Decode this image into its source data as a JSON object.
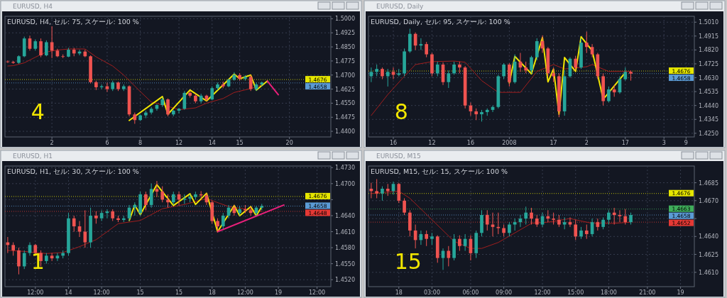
{
  "chart_data": [
    {
      "type": "candlestick",
      "title": "EURUSD, H4",
      "subtitle": "EURUSD, H4, セル: 75, スケール: 100 %",
      "categories": [
        null,
        null,
        null,
        null,
        null,
        null,
        null,
        null,
        "2",
        null,
        null,
        null,
        null,
        null,
        null,
        null,
        null,
        null,
        "6",
        null,
        null,
        null,
        null,
        null,
        "8",
        null,
        null,
        null,
        null,
        null,
        null,
        "12",
        null,
        null,
        null,
        null,
        null,
        "14",
        null,
        null,
        null,
        null,
        "15",
        null,
        null,
        null,
        null,
        null,
        null,
        null,
        null,
        "20",
        null,
        null,
        null,
        null,
        null,
        null,
        null
      ],
      "ohlc": [
        [
          1.4772,
          1.4778,
          1.4765,
          1.477
        ],
        [
          1.477,
          1.4775,
          1.476,
          1.4765
        ],
        [
          1.4765,
          1.4805,
          1.476,
          1.48
        ],
        [
          1.48,
          1.4905,
          1.4795,
          1.4895
        ],
        [
          1.4895,
          1.491,
          1.483,
          1.484
        ],
        [
          1.484,
          1.489,
          1.483,
          1.488
        ],
        [
          1.488,
          1.4895,
          1.4795,
          1.4805
        ],
        [
          1.4805,
          1.4885,
          1.48,
          1.4875
        ],
        [
          1.4875,
          1.496,
          1.479,
          1.483
        ],
        [
          1.483,
          1.484,
          1.4795,
          1.48
        ],
        [
          1.48,
          1.481,
          1.479,
          1.4798
        ],
        [
          1.4798,
          1.4845,
          1.4795,
          1.4835
        ],
        [
          1.4835,
          1.4845,
          1.48,
          1.4815
        ],
        [
          1.4815,
          1.4835,
          1.4805,
          1.4825
        ],
        [
          1.4825,
          1.4835,
          1.4795,
          1.48
        ],
        [
          1.48,
          1.4805,
          1.4655,
          1.4662
        ],
        [
          1.4662,
          1.467,
          1.462,
          1.4635
        ],
        [
          1.4635,
          1.465,
          1.4625,
          1.464
        ],
        [
          1.464,
          1.466,
          1.461,
          1.4625
        ],
        [
          1.4625,
          1.467,
          1.4615,
          1.466
        ],
        [
          1.466,
          1.4665,
          1.4615,
          1.4625
        ],
        [
          1.4625,
          1.465,
          1.4615,
          1.464
        ],
        [
          1.464,
          1.4645,
          1.448,
          1.449
        ],
        [
          1.449,
          1.45,
          1.444,
          1.446
        ],
        [
          1.446,
          1.449,
          1.4455,
          1.4485
        ],
        [
          1.4485,
          1.451,
          1.447,
          1.45
        ],
        [
          1.45,
          1.453,
          1.449,
          1.452
        ],
        [
          1.452,
          1.4545,
          1.451,
          1.454
        ],
        [
          1.454,
          1.458,
          1.453,
          1.457
        ],
        [
          1.457,
          1.4575,
          1.448,
          1.449
        ],
        [
          1.449,
          1.4515,
          1.448,
          1.451
        ],
        [
          1.451,
          1.4525,
          1.4495,
          1.452
        ],
        [
          1.452,
          1.4615,
          1.4515,
          1.4605
        ],
        [
          1.4605,
          1.4615,
          1.458,
          1.459
        ],
        [
          1.459,
          1.46,
          1.455,
          1.456
        ],
        [
          1.456,
          1.46,
          1.455,
          1.459
        ],
        [
          1.459,
          1.4595,
          1.456,
          1.457
        ],
        [
          1.457,
          1.464,
          1.4565,
          1.463
        ],
        [
          1.463,
          1.466,
          1.462,
          1.465
        ],
        [
          1.465,
          1.4665,
          1.463,
          1.464
        ],
        [
          1.464,
          1.468,
          1.4635,
          1.4675
        ],
        [
          1.4675,
          1.4715,
          1.467,
          1.47
        ],
        [
          1.47,
          1.471,
          1.467,
          1.468
        ],
        [
          1.468,
          1.47,
          1.467,
          1.469
        ],
        [
          1.469,
          1.47,
          1.4615,
          1.4625
        ],
        [
          1.4625,
          1.466,
          1.4615,
          1.465
        ],
        [
          1.465,
          1.4665,
          1.464,
          1.466
        ],
        null,
        null,
        null,
        null,
        null,
        null,
        null,
        null,
        null,
        null,
        null,
        null
      ],
      "series": [
        {
          "type": "line",
          "color": "#a01e1e",
          "values": [
            1.4748,
            1.475,
            null,
            1.4765,
            null,
            1.4795,
            null,
            1.4823,
            null,
            1.4833,
            null,
            1.4839,
            null,
            null,
            1.4839,
            null,
            1.4797,
            null,
            null,
            1.4748,
            null,
            1.47,
            null,
            null,
            1.4612,
            null,
            1.4556,
            null,
            null,
            1.4533,
            null,
            1.4515,
            null,
            null,
            1.4525,
            null,
            1.455,
            null,
            null,
            1.4575,
            null,
            1.4607,
            null,
            null,
            1.4628,
            null,
            1.4647,
            null,
            null,
            null,
            null,
            null,
            null,
            null,
            null,
            null,
            null,
            null,
            null
          ]
        },
        {
          "type": "line",
          "color": "#f2e600",
          "values": [
            null,
            null,
            null,
            null,
            null,
            null,
            null,
            null,
            null,
            null,
            null,
            null,
            null,
            null,
            null,
            null,
            null,
            null,
            null,
            null,
            null,
            null,
            1.4458,
            null,
            null,
            null,
            null,
            null,
            1.4585,
            1.4491,
            null,
            null,
            null,
            1.462,
            null,
            null,
            1.4562,
            null,
            null,
            null,
            null,
            1.4705,
            1.468,
            null,
            1.47,
            1.462,
            null,
            1.4668,
            null,
            null,
            null,
            null,
            null,
            null,
            null,
            null,
            null,
            null,
            null
          ]
        },
        {
          "type": "line",
          "color": "#e8207a",
          "values": [
            null,
            null,
            null,
            null,
            null,
            null,
            null,
            null,
            null,
            null,
            null,
            null,
            null,
            null,
            null,
            null,
            null,
            null,
            null,
            null,
            null,
            null,
            null,
            null,
            null,
            null,
            null,
            null,
            null,
            null,
            null,
            null,
            null,
            null,
            null,
            null,
            null,
            null,
            null,
            null,
            null,
            null,
            null,
            null,
            null,
            null,
            null,
            1.4668,
            null,
            1.4595,
            null,
            null,
            null,
            null,
            null,
            null,
            null,
            null,
            null
          ]
        }
      ],
      "ylim": [
        1.437,
        1.5013
      ],
      "yticks": [
        {
          "value": 1.5,
          "label": "1.5000"
        },
        {
          "value": 1.4925,
          "label": "1.4925"
        },
        {
          "value": 1.485,
          "label": "1.4850"
        },
        {
          "value": 1.4775,
          "label": "1.4775"
        },
        {
          "value": 1.47,
          "label": "1.4700"
        },
        {
          "value": 1.4625,
          "label": "1.4625"
        },
        {
          "value": 1.455,
          "label": "1.4550"
        },
        {
          "value": 1.4475,
          "label": "1.4475"
        },
        {
          "value": 1.44,
          "label": "1.4400"
        }
      ],
      "ref_lines": [
        {
          "axis": "y",
          "value": 1.4676,
          "label": "1.4676",
          "color": "#e6e600"
        },
        {
          "axis": "y",
          "value": 1.4658,
          "label": "1.4658",
          "color": "#5b9bd5"
        }
      ],
      "grid": true,
      "annotations": [
        "4"
      ]
    },
    {
      "type": "candlestick",
      "title": "EURUSD, Daily",
      "subtitle": "EURUSD, Daily, セル: 95, スケール: 100 %",
      "categories": [
        null,
        null,
        null,
        null,
        "16",
        null,
        null,
        null,
        null,
        null,
        null,
        "12",
        null,
        null,
        null,
        null,
        null,
        null,
        "16",
        null,
        null,
        null,
        null,
        null,
        null,
        "2008",
        null,
        null,
        null,
        null,
        null,
        null,
        null,
        "17",
        null,
        null,
        null,
        null,
        null,
        "2",
        null,
        null,
        null,
        null,
        null,
        null,
        "17",
        null,
        null,
        null,
        null,
        null,
        null,
        "3",
        null,
        null,
        null,
        "9",
        null
      ],
      "ohlc": [
        [
          1.464,
          1.47,
          1.46,
          1.467
        ],
        [
          1.467,
          1.472,
          1.464,
          1.469
        ],
        [
          1.469,
          1.47,
          1.462,
          1.464
        ],
        [
          1.464,
          1.469,
          1.457,
          1.467
        ],
        [
          1.467,
          1.47,
          1.462,
          1.465
        ],
        [
          1.465,
          1.469,
          1.464,
          1.466
        ],
        [
          1.466,
          1.483,
          1.464,
          1.481
        ],
        [
          1.481,
          1.4965,
          1.48,
          1.493
        ],
        [
          1.493,
          1.494,
          1.482,
          1.485
        ],
        [
          1.485,
          1.49,
          1.482,
          1.486
        ],
        [
          1.486,
          1.4875,
          1.477,
          1.479
        ],
        [
          1.479,
          1.48,
          1.464,
          1.466
        ],
        [
          1.466,
          1.474,
          1.464,
          1.472
        ],
        [
          1.472,
          1.4735,
          1.458,
          1.46
        ],
        [
          1.46,
          1.468,
          1.456,
          1.466
        ],
        [
          1.466,
          1.474,
          1.465,
          1.472
        ],
        [
          1.472,
          1.474,
          1.466,
          1.47
        ],
        [
          1.47,
          1.471,
          1.442,
          1.444
        ],
        [
          1.444,
          1.446,
          1.437,
          1.44
        ],
        [
          1.44,
          1.442,
          1.434,
          1.438
        ],
        [
          1.438,
          1.441,
          1.433,
          1.4395
        ],
        [
          1.4395,
          1.442,
          1.437,
          1.441
        ],
        [
          1.441,
          1.444,
          1.4395,
          1.443
        ],
        [
          1.443,
          1.465,
          1.442,
          1.464
        ],
        [
          1.464,
          1.473,
          1.462,
          1.472
        ],
        [
          1.472,
          1.473,
          1.457,
          1.46
        ],
        [
          1.46,
          1.479,
          1.459,
          1.474
        ],
        [
          1.474,
          1.48,
          1.467,
          1.47
        ],
        [
          1.47,
          1.474,
          1.466,
          1.468
        ],
        [
          1.468,
          1.478,
          1.466,
          1.477
        ],
        [
          1.477,
          1.49,
          1.475,
          1.488
        ],
        [
          1.488,
          1.492,
          1.48,
          1.483
        ],
        [
          1.483,
          1.484,
          1.464,
          1.466
        ],
        [
          1.466,
          1.47,
          1.46,
          1.464
        ],
        [
          1.464,
          1.466,
          1.436,
          1.44
        ],
        [
          1.44,
          1.468,
          1.437,
          1.464
        ],
        [
          1.464,
          1.477,
          1.463,
          1.476
        ],
        [
          1.476,
          1.478,
          1.468,
          1.47
        ],
        [
          1.47,
          1.49,
          1.469,
          1.487
        ],
        [
          1.487,
          1.4945,
          1.48,
          1.484
        ],
        [
          1.484,
          1.486,
          1.477,
          1.479
        ],
        [
          1.479,
          1.48,
          1.462,
          1.464
        ],
        [
          1.464,
          1.466,
          1.444,
          1.447
        ],
        [
          1.447,
          1.457,
          1.446,
          1.455
        ],
        [
          1.455,
          1.458,
          1.45,
          1.453
        ],
        [
          1.453,
          1.464,
          1.452,
          1.462
        ],
        [
          1.462,
          1.47,
          1.461,
          1.467
        ],
        [
          1.467,
          1.468,
          1.461,
          1.4658
        ],
        null,
        null,
        null,
        null,
        null,
        null,
        null,
        null,
        null,
        null,
        null
      ],
      "series": [
        {
          "type": "line",
          "color": "#a01e1e",
          "values": [
            1.4372,
            null,
            null,
            1.4515,
            null,
            null,
            1.464,
            null,
            1.472,
            null,
            null,
            1.474,
            null,
            null,
            null,
            1.4744,
            null,
            1.4736,
            null,
            null,
            1.461,
            null,
            null,
            1.453,
            null,
            null,
            null,
            1.453,
            null,
            null,
            1.4673,
            null,
            null,
            1.472,
            null,
            1.469,
            null,
            null,
            null,
            1.4705,
            1.472,
            null,
            null,
            1.4673,
            null,
            null,
            null,
            1.4673,
            null,
            null,
            null,
            null,
            null,
            null,
            null,
            null,
            null,
            null,
            null
          ]
        },
        {
          "type": "line",
          "color": "#f2e600",
          "values": [
            null,
            null,
            null,
            null,
            null,
            null,
            null,
            null,
            null,
            null,
            null,
            null,
            null,
            null,
            null,
            null,
            null,
            null,
            null,
            null,
            null,
            null,
            null,
            null,
            null,
            1.4594,
            1.4776,
            null,
            null,
            1.4657,
            null,
            1.4905,
            1.4602,
            1.4689,
            1.438,
            1.4768,
            null,
            1.4673,
            1.491,
            null,
            1.4815,
            null,
            1.4483,
            null,
            null,
            null,
            1.4665,
            null,
            null,
            null,
            null,
            null,
            null,
            null,
            null,
            null,
            null,
            null,
            null
          ]
        }
      ],
      "ylim": [
        1.4225,
        1.505
      ],
      "yticks": [
        {
          "value": 1.501,
          "label": "1.5010"
        },
        {
          "value": 1.4915,
          "label": "1.4915"
        },
        {
          "value": 1.482,
          "label": "1.4820"
        },
        {
          "value": 1.4725,
          "label": "1.4725"
        },
        {
          "value": 1.463,
          "label": "1.4630"
        },
        {
          "value": 1.4535,
          "label": "1.4535"
        },
        {
          "value": 1.444,
          "label": "1.4440"
        },
        {
          "value": 1.4345,
          "label": "1.4345"
        },
        {
          "value": 1.425,
          "label": "1.4250"
        }
      ],
      "ref_lines": [
        {
          "axis": "y",
          "value": 1.4676,
          "label": "1.4676",
          "color": "#e6e600"
        },
        {
          "axis": "y",
          "value": 1.4658,
          "label": "1.4658",
          "color": "#5b9bd5"
        }
      ],
      "grid": true,
      "annotations": [
        "8"
      ]
    },
    {
      "type": "candlestick",
      "title": "EURUSD, H1",
      "subtitle": "EURUSD, H1, セル: 30, スケール: 100 %",
      "categories": [
        null,
        null,
        null,
        null,
        null,
        "12:00",
        null,
        null,
        null,
        null,
        null,
        "14",
        null,
        null,
        null,
        null,
        null,
        "12:00",
        null,
        null,
        null,
        null,
        null,
        null,
        "15",
        null,
        null,
        null,
        null,
        null,
        null,
        "15",
        null,
        null,
        null,
        null,
        null,
        "18",
        null,
        null,
        null,
        null,
        null,
        "12:00",
        null,
        null,
        null,
        null,
        null,
        "19",
        null,
        null,
        null,
        null,
        null,
        null,
        "12:00",
        null,
        null
      ],
      "ohlc": [
        [
          1.459,
          1.46,
          1.457,
          1.4585
        ],
        [
          1.4585,
          1.459,
          1.4565,
          1.4575
        ],
        [
          1.4575,
          1.458,
          1.453,
          1.4545
        ],
        [
          1.4545,
          1.4575,
          1.454,
          1.457
        ],
        [
          1.457,
          1.459,
          1.4565,
          1.4585
        ],
        [
          1.4585,
          1.4587,
          1.4565,
          1.457
        ],
        [
          1.457,
          1.4575,
          1.4545,
          1.4555
        ],
        [
          1.4555,
          1.457,
          1.455,
          1.4565
        ],
        [
          1.4565,
          1.457,
          1.4555,
          1.456
        ],
        [
          1.456,
          1.457,
          1.4555,
          1.4565
        ],
        [
          1.4565,
          1.4575,
          1.456,
          1.457
        ],
        [
          1.457,
          1.4645,
          1.4565,
          1.4635
        ],
        [
          1.4635,
          1.464,
          1.461,
          1.462
        ],
        [
          1.462,
          1.463,
          1.46,
          1.461
        ],
        [
          1.461,
          1.465,
          1.458,
          1.459
        ],
        [
          1.459,
          1.4655,
          1.458,
          1.464
        ],
        [
          1.464,
          1.4648,
          1.4625,
          1.4635
        ],
        [
          1.4635,
          1.465,
          1.463,
          1.4645
        ],
        [
          1.4645,
          1.4652,
          1.4635,
          1.4648
        ],
        [
          1.4648,
          1.4652,
          1.463,
          1.4635
        ],
        [
          1.4635,
          1.464,
          1.4628,
          1.4632
        ],
        [
          1.4632,
          1.464,
          1.4628,
          1.4635
        ],
        [
          1.4635,
          1.466,
          1.463,
          1.4655
        ],
        [
          1.4655,
          1.4665,
          1.464,
          1.466
        ],
        [
          1.4645,
          1.4685,
          1.464,
          1.468
        ],
        [
          1.468,
          1.4685,
          1.465,
          1.466
        ],
        [
          1.466,
          1.47,
          1.4655,
          1.469
        ],
        [
          1.469,
          1.4705,
          1.4675,
          1.4685
        ],
        [
          1.4685,
          1.4695,
          1.4665,
          1.467
        ],
        [
          1.467,
          1.468,
          1.4655,
          1.4665
        ],
        [
          1.4665,
          1.4685,
          1.466,
          1.468
        ],
        [
          1.468,
          1.4685,
          1.466,
          1.467
        ],
        [
          1.467,
          1.468,
          1.4662,
          1.4672
        ],
        [
          1.4672,
          1.468,
          1.4665,
          1.4675
        ],
        [
          1.4675,
          1.4685,
          1.467,
          1.468
        ],
        [
          1.468,
          1.4686,
          1.4672,
          1.4678
        ],
        [
          1.4678,
          1.4682,
          1.466,
          1.4665
        ],
        [
          1.4665,
          1.4668,
          1.4625,
          1.463
        ],
        [
          1.463,
          1.4635,
          1.4612,
          1.462
        ],
        [
          1.462,
          1.4645,
          1.4615,
          1.464
        ],
        [
          1.464,
          1.466,
          1.4635,
          1.4655
        ],
        [
          1.4655,
          1.466,
          1.464,
          1.4645
        ],
        [
          1.4645,
          1.4658,
          1.464,
          1.4652
        ],
        [
          1.4652,
          1.466,
          1.4645,
          1.465
        ],
        [
          1.465,
          1.4657,
          1.464,
          1.4645
        ],
        [
          1.4645,
          1.4658,
          1.464,
          1.4655
        ],
        [
          1.4655,
          1.4662,
          1.465,
          1.4658
        ],
        null,
        null,
        null,
        null,
        null,
        null,
        null,
        null,
        null,
        null,
        null,
        null
      ],
      "series": [
        {
          "type": "line",
          "color": "#a01e1e",
          "values": [
            1.4575,
            null,
            null,
            1.4573,
            null,
            null,
            null,
            1.4569,
            null,
            null,
            1.4571,
            null,
            null,
            1.4582,
            null,
            null,
            1.4595,
            null,
            null,
            null,
            1.4625,
            null,
            null,
            null,
            1.4631,
            null,
            null,
            null,
            1.4653,
            null,
            null,
            null,
            1.4661,
            null,
            null,
            null,
            1.4672,
            null,
            null,
            null,
            1.4657,
            null,
            null,
            null,
            1.4651,
            null,
            1.4648,
            null,
            null,
            null,
            null,
            null,
            null,
            null,
            null,
            null,
            null,
            null,
            null
          ]
        },
        {
          "type": "line",
          "color": "#f2e600",
          "values": [
            null,
            null,
            null,
            null,
            null,
            null,
            null,
            null,
            null,
            null,
            null,
            null,
            null,
            null,
            null,
            null,
            null,
            null,
            null,
            null,
            null,
            null,
            1.4631,
            1.466,
            1.4642,
            null,
            null,
            1.4698,
            null,
            null,
            1.4659,
            null,
            null,
            1.4681,
            1.4661,
            null,
            1.4682,
            null,
            1.461,
            null,
            null,
            1.4659,
            1.464,
            null,
            1.4657,
            1.464,
            1.4657,
            null,
            null,
            null,
            null,
            null,
            null,
            null,
            null,
            null,
            null,
            null,
            null
          ]
        },
        {
          "type": "line",
          "color": "#e8207a",
          "values": [
            null,
            null,
            null,
            null,
            null,
            null,
            null,
            null,
            null,
            null,
            null,
            null,
            null,
            null,
            null,
            null,
            null,
            null,
            null,
            null,
            null,
            null,
            null,
            null,
            null,
            null,
            null,
            null,
            null,
            null,
            null,
            null,
            null,
            null,
            null,
            null,
            null,
            null,
            1.461,
            null,
            null,
            null,
            null,
            null,
            null,
            null,
            null,
            null,
            null,
            null,
            1.466,
            null,
            null,
            null,
            null,
            null,
            null,
            null,
            null
          ]
        }
      ],
      "ylim": [
        1.4507,
        1.4733
      ],
      "yticks": [
        {
          "value": 1.473,
          "label": "1.4730"
        },
        {
          "value": 1.47,
          "label": "1.4700"
        },
        {
          "value": 1.467,
          "label": null
        },
        {
          "value": 1.464,
          "label": "1.4640"
        },
        {
          "value": 1.461,
          "label": "1.4610"
        },
        {
          "value": 1.458,
          "label": "1.4580"
        },
        {
          "value": 1.455,
          "label": "1.4550"
        },
        {
          "value": 1.452,
          "label": "1.4520"
        }
      ],
      "ref_lines": [
        {
          "axis": "y",
          "value": 1.4676,
          "label": "1.4676",
          "color": "#e6e600"
        },
        {
          "axis": "y",
          "value": 1.4658,
          "label": "1.4658",
          "color": "#5b9bd5"
        },
        {
          "axis": "y",
          "value": 1.4648,
          "label": "1.4648",
          "color": "#e53935"
        }
      ],
      "grid": true,
      "annotations": [
        "1"
      ]
    },
    {
      "type": "candlestick",
      "title": "EURUSD, M15",
      "subtitle": "EURUSD, M15, セル: 15, スケール: 100 %",
      "categories": [
        null,
        null,
        null,
        null,
        null,
        "18",
        null,
        null,
        null,
        null,
        null,
        "03:00",
        null,
        null,
        null,
        null,
        null,
        null,
        "06:00",
        null,
        null,
        null,
        null,
        null,
        "09:00",
        null,
        null,
        null,
        null,
        null,
        null,
        "12:00",
        null,
        null,
        null,
        null,
        null,
        "15:00",
        null,
        null,
        null,
        null,
        null,
        "18:00",
        null,
        null,
        null,
        null,
        null,
        null,
        "21:00",
        null,
        null,
        null,
        null,
        null,
        "19",
        null,
        null
      ],
      "ohlc": [
        [
          1.468,
          1.4685,
          1.4672,
          1.4678
        ],
        [
          1.4678,
          1.4688,
          1.4672,
          1.4676
        ],
        [
          1.4676,
          1.4682,
          1.467,
          1.468
        ],
        [
          1.468,
          1.4684,
          1.4674,
          1.4678
        ],
        [
          1.4678,
          1.4686,
          1.4675,
          1.4684
        ],
        [
          1.4684,
          1.4685,
          1.4668,
          1.467
        ],
        [
          1.467,
          1.4672,
          1.4658,
          1.466
        ],
        [
          1.466,
          1.4662,
          1.464,
          1.4645
        ],
        [
          1.4645,
          1.465,
          1.463,
          1.4637
        ],
        [
          1.4637,
          1.4645,
          1.4633,
          1.4642
        ],
        [
          1.4642,
          1.4645,
          1.4632,
          1.4638
        ],
        [
          1.4638,
          1.4643,
          1.4633,
          1.464
        ],
        [
          1.464,
          1.4641,
          1.4618,
          1.4622
        ],
        [
          1.4622,
          1.463,
          1.4612,
          1.4628
        ],
        [
          1.4628,
          1.4632,
          1.4615,
          1.4622
        ],
        [
          1.4622,
          1.4642,
          1.462,
          1.4638
        ],
        [
          1.4638,
          1.4641,
          1.4628,
          1.4632
        ],
        [
          1.4632,
          1.4642,
          1.4628,
          1.4638
        ],
        [
          1.4638,
          1.4641,
          1.462,
          1.4626
        ],
        [
          1.4626,
          1.4645,
          1.4622,
          1.4643
        ],
        [
          1.4643,
          1.4662,
          1.464,
          1.4658
        ],
        [
          1.4658,
          1.4662,
          1.4645,
          1.465
        ],
        [
          1.465,
          1.466,
          1.464,
          1.4648
        ],
        [
          1.4648,
          1.466,
          1.4642,
          1.4647
        ],
        [
          1.4647,
          1.465,
          1.464,
          1.4643
        ],
        [
          1.4643,
          1.4652,
          1.464,
          1.465
        ],
        [
          1.465,
          1.4655,
          1.4645,
          1.4652
        ],
        [
          1.4652,
          1.4658,
          1.4648,
          1.4655
        ],
        [
          1.4655,
          1.4665,
          1.465,
          1.466
        ],
        [
          1.466,
          1.4664,
          1.465,
          1.4655
        ],
        [
          1.4655,
          1.4658,
          1.4648,
          1.465
        ],
        [
          1.465,
          1.466,
          1.4648,
          1.4657
        ],
        [
          1.4657,
          1.4662,
          1.4652,
          1.4655
        ],
        [
          1.4655,
          1.466,
          1.465,
          1.4654
        ],
        [
          1.4654,
          1.4658,
          1.4648,
          1.465
        ],
        [
          1.465,
          1.4656,
          1.4646,
          1.4652
        ],
        [
          1.4652,
          1.4656,
          1.4648,
          1.465
        ],
        [
          1.465,
          1.4654,
          1.4637,
          1.464
        ],
        [
          1.464,
          1.4648,
          1.4638,
          1.4645
        ],
        [
          1.4645,
          1.465,
          1.4638,
          1.4642
        ],
        [
          1.4642,
          1.4655,
          1.464,
          1.4652
        ],
        [
          1.4652,
          1.4655,
          1.4645,
          1.4648
        ],
        [
          1.4648,
          1.4656,
          1.4646,
          1.4654
        ],
        [
          1.4654,
          1.4662,
          1.465,
          1.466
        ],
        [
          1.466,
          1.4664,
          1.465,
          1.4658
        ],
        [
          1.4658,
          1.4662,
          1.4652,
          1.4657
        ],
        [
          1.4657,
          1.4663,
          1.465,
          1.4652
        ],
        [
          1.4652,
          1.466,
          1.465,
          1.4658
        ],
        null,
        null,
        null,
        null,
        null,
        null,
        null,
        null,
        null,
        null,
        null
      ],
      "series": [
        {
          "type": "line",
          "color": "#a01e1e",
          "values": [
            1.4676,
            null,
            null,
            null,
            null,
            1.4678,
            null,
            1.4672,
            null,
            null,
            null,
            1.4654,
            null,
            null,
            null,
            1.4636,
            null,
            null,
            1.463,
            null,
            1.463,
            null,
            null,
            1.4635,
            null,
            null,
            1.4643,
            null,
            null,
            1.4651,
            null,
            null,
            1.4652,
            null,
            null,
            null,
            1.4655,
            null,
            null,
            null,
            1.4651,
            null,
            null,
            null,
            1.4651,
            null,
            null,
            1.4652,
            null,
            null,
            null,
            null,
            null,
            null,
            null,
            null,
            null,
            null,
            null
          ]
        }
      ],
      "ylim": [
        1.4598,
        1.4699
      ],
      "yticks": [
        {
          "value": 1.4685,
          "label": "1.4685"
        },
        {
          "value": 1.467,
          "label": "1.4670"
        },
        {
          "value": 1.4655,
          "label": null
        },
        {
          "value": 1.464,
          "label": "1.4640"
        },
        {
          "value": 1.4625,
          "label": "1.4625"
        },
        {
          "value": 1.461,
          "label": "1.4610"
        }
      ],
      "ref_lines": [
        {
          "axis": "y",
          "value": 1.4676,
          "label": "1.4676",
          "color": "#e6e600"
        },
        {
          "axis": "y",
          "value": 1.4663,
          "label": "1.4663",
          "color": "#3fae5a"
        },
        {
          "axis": "y",
          "value": 1.4658,
          "label": "1.4658",
          "color": "#5b9bd5"
        },
        {
          "axis": "y",
          "value": 1.4652,
          "label": "1.4652",
          "color": "#e53935"
        }
      ],
      "grid": true,
      "annotations": [
        "15"
      ]
    }
  ]
}
